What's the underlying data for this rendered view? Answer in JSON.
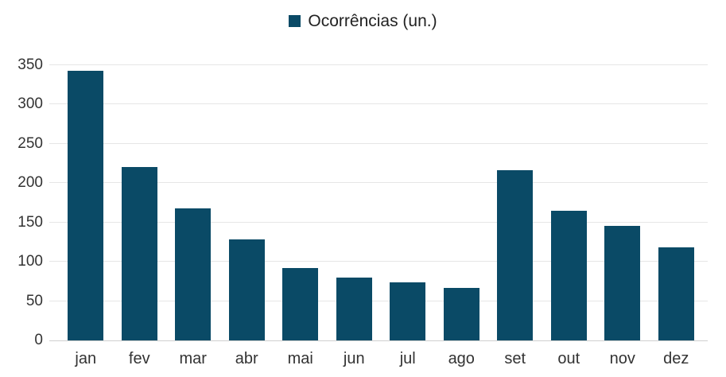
{
  "legend": {
    "label": "Ocorrências (un.)"
  },
  "colors": {
    "bar": "#0a4a66",
    "grid": "#e6e6e6",
    "axis_line": "#cfcfcf",
    "tick_text": "#333333",
    "legend_text": "#222222"
  },
  "chart_data": {
    "type": "bar",
    "title": "",
    "legend_entries": [
      "Ocorrências (un.)"
    ],
    "legend_position": "top-center",
    "categories": [
      "jan",
      "fev",
      "mar",
      "abr",
      "mai",
      "jun",
      "jul",
      "ago",
      "set",
      "out",
      "nov",
      "dez"
    ],
    "series": [
      {
        "name": "Ocorrências (un.)",
        "values": [
          343,
          221,
          168,
          128,
          92,
          80,
          74,
          67,
          216,
          165,
          146,
          118
        ]
      }
    ],
    "xlabel": "",
    "ylabel": "",
    "ylim": [
      0,
      350
    ],
    "yticks": [
      0,
      50,
      100,
      150,
      200,
      250,
      300,
      350
    ],
    "grid": "horizontal"
  }
}
